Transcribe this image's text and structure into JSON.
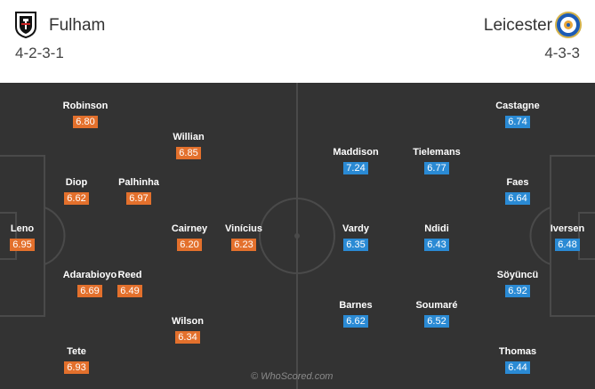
{
  "home": {
    "name": "Fulham",
    "formation": "4-2-3-1",
    "crest_icon": "fulham-crest",
    "rating_color": "#e3702c",
    "players": [
      {
        "name": "Robinson",
        "rating": "6.80"
      },
      {
        "name": "Willian",
        "rating": "6.85"
      },
      {
        "name": "Diop",
        "rating": "6.62"
      },
      {
        "name": "Palhinha",
        "rating": "6.97"
      },
      {
        "name": "Leno",
        "rating": "6.95"
      },
      {
        "name": "Cairney",
        "rating": "6.20"
      },
      {
        "name": "Vinícius",
        "rating": "6.23"
      },
      {
        "name": "Adarabioyo",
        "rating": "6.69"
      },
      {
        "name": "Reed",
        "rating": "6.49"
      },
      {
        "name": "Wilson",
        "rating": "6.34"
      },
      {
        "name": "Tete",
        "rating": "6.93"
      }
    ]
  },
  "away": {
    "name": "Leicester",
    "formation": "4-3-3",
    "crest_icon": "leicester-crest",
    "rating_color": "#2a8ad4",
    "players": [
      {
        "name": "Castagne",
        "rating": "6.74"
      },
      {
        "name": "Maddison",
        "rating": "7.24"
      },
      {
        "name": "Tielemans",
        "rating": "6.77"
      },
      {
        "name": "Faes",
        "rating": "6.64"
      },
      {
        "name": "Vardy",
        "rating": "6.35"
      },
      {
        "name": "Ndidi",
        "rating": "6.43"
      },
      {
        "name": "Iversen",
        "rating": "6.48"
      },
      {
        "name": "Söyüncü",
        "rating": "6.92"
      },
      {
        "name": "Barnes",
        "rating": "6.62"
      },
      {
        "name": "Soumaré",
        "rating": "6.52"
      },
      {
        "name": "Thomas",
        "rating": "6.44"
      }
    ]
  },
  "watermark": "© WhoScored.com",
  "pitch_color": "#333333"
}
